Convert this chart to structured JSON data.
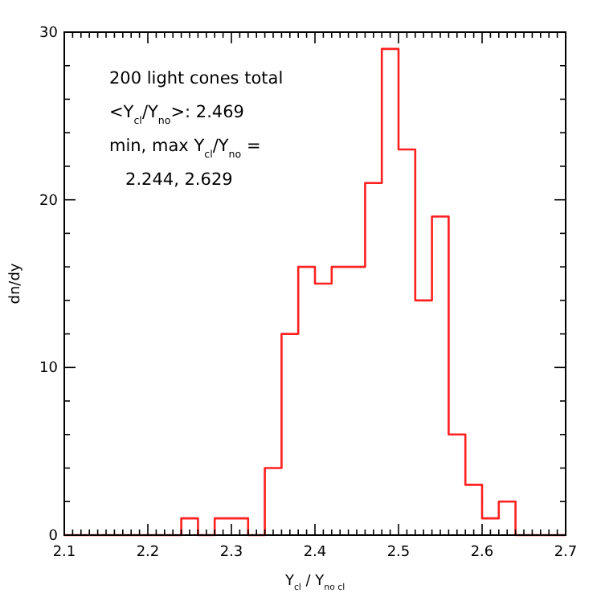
{
  "chart_data": {
    "type": "histogram",
    "xlabel": "Y$_{cl}$ / Y$_{no cl}$",
    "ylabel": "dn/dy",
    "color": "#ff2020",
    "bins": [
      2.1,
      2.12,
      2.14,
      2.16,
      2.18,
      2.2,
      2.22,
      2.24,
      2.26,
      2.28,
      2.3,
      2.32,
      2.34,
      2.36,
      2.38,
      2.4,
      2.42,
      2.44,
      2.46,
      2.48,
      2.5,
      2.52,
      2.54,
      2.56,
      2.58,
      2.6,
      2.62,
      2.64,
      2.66,
      2.68,
      2.7
    ],
    "values": [
      0,
      0,
      0,
      0,
      0,
      0,
      0,
      1,
      0,
      1,
      1,
      0,
      4,
      12,
      16,
      15,
      16,
      16,
      21,
      29,
      23,
      14,
      19,
      6,
      3,
      1,
      2,
      0,
      0,
      0
    ],
    "xlim": [
      2.1,
      2.7
    ],
    "ylim": [
      0,
      30
    ],
    "xticks": [
      {
        "value": 2.1,
        "label": "2.1"
      },
      {
        "value": 2.11,
        "label": null
      },
      {
        "value": 2.12,
        "label": null
      },
      {
        "value": 2.13,
        "label": null
      },
      {
        "value": 2.14,
        "label": null
      },
      {
        "value": 2.15,
        "label": null
      },
      {
        "value": 2.16,
        "label": null
      },
      {
        "value": 2.17,
        "label": null
      },
      {
        "value": 2.18,
        "label": null
      },
      {
        "value": 2.19,
        "label": null
      },
      {
        "value": 2.2,
        "label": "2.2"
      },
      {
        "value": 2.21,
        "label": null
      },
      {
        "value": 2.22,
        "label": null
      },
      {
        "value": 2.23,
        "label": null
      },
      {
        "value": 2.24,
        "label": null
      },
      {
        "value": 2.25,
        "label": null
      },
      {
        "value": 2.26,
        "label": null
      },
      {
        "value": 2.27,
        "label": null
      },
      {
        "value": 2.28,
        "label": null
      },
      {
        "value": 2.29,
        "label": null
      },
      {
        "value": 2.3,
        "label": "2.3"
      },
      {
        "value": 2.31,
        "label": null
      },
      {
        "value": 2.32,
        "label": null
      },
      {
        "value": 2.33,
        "label": null
      },
      {
        "value": 2.34,
        "label": null
      },
      {
        "value": 2.35,
        "label": null
      },
      {
        "value": 2.36,
        "label": null
      },
      {
        "value": 2.37,
        "label": null
      },
      {
        "value": 2.38,
        "label": null
      },
      {
        "value": 2.39,
        "label": null
      },
      {
        "value": 2.4,
        "label": "2.4"
      },
      {
        "value": 2.41,
        "label": null
      },
      {
        "value": 2.42,
        "label": null
      },
      {
        "value": 2.43,
        "label": null
      },
      {
        "value": 2.44,
        "label": null
      },
      {
        "value": 2.45,
        "label": null
      },
      {
        "value": 2.46,
        "label": null
      },
      {
        "value": 2.47,
        "label": null
      },
      {
        "value": 2.48,
        "label": null
      },
      {
        "value": 2.49,
        "label": null
      },
      {
        "value": 2.5,
        "label": "2.5"
      },
      {
        "value": 2.51,
        "label": null
      },
      {
        "value": 2.52,
        "label": null
      },
      {
        "value": 2.53,
        "label": null
      },
      {
        "value": 2.54,
        "label": null
      },
      {
        "value": 2.55,
        "label": null
      },
      {
        "value": 2.56,
        "label": null
      },
      {
        "value": 2.57,
        "label": null
      },
      {
        "value": 2.58,
        "label": null
      },
      {
        "value": 2.59,
        "label": null
      },
      {
        "value": 2.6,
        "label": "2.6"
      },
      {
        "value": 2.61,
        "label": null
      },
      {
        "value": 2.62,
        "label": null
      },
      {
        "value": 2.63,
        "label": null
      },
      {
        "value": 2.64,
        "label": null
      },
      {
        "value": 2.65,
        "label": null
      },
      {
        "value": 2.66,
        "label": null
      },
      {
        "value": 2.67,
        "label": null
      },
      {
        "value": 2.68,
        "label": null
      },
      {
        "value": 2.69,
        "label": null
      },
      {
        "value": 2.7,
        "label": "2.7"
      }
    ],
    "yticks": [
      0,
      {
        "value": 2,
        "label": null
      },
      {
        "value": 4,
        "label": null
      },
      {
        "value": 6,
        "label": null
      },
      {
        "value": 8,
        "label": null
      },
      10,
      {
        "value": 12,
        "label": null
      },
      {
        "value": 14,
        "label": null
      },
      {
        "value": 16,
        "label": null
      },
      {
        "value": 18,
        "label": null
      },
      20,
      {
        "value": 22,
        "label": null
      },
      {
        "value": 24,
        "label": null
      },
      {
        "value": 26,
        "label": null
      },
      {
        "value": 28,
        "label": null
      },
      30
    ],
    "annotations": [
      "200 light cones total",
      "<Y$_{cl}$/Y$_{no}$>: 2.469",
      "min, max Y$_{cl}$/Y$_{no}$ =",
      "   2.244, 2.629"
    ]
  }
}
